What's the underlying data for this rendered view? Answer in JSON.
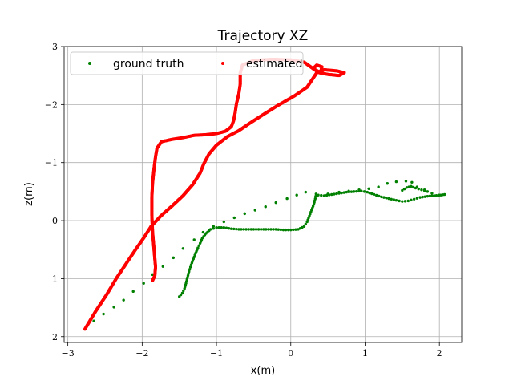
{
  "chart_data": {
    "type": "scatter",
    "title": "Trajectory XZ",
    "xlabel": "x(m)",
    "ylabel": "z(m)",
    "xlim": [
      -3.05,
      2.3
    ],
    "ylim": [
      -3.0,
      2.1
    ],
    "y_inverted": true,
    "grid": true,
    "legend_position": "top",
    "x_ticks": [
      -3,
      -2,
      -1,
      0,
      1,
      2
    ],
    "y_ticks": [
      -3,
      -2,
      -1,
      0,
      1,
      2
    ],
    "x_tick_labels": [
      "−3",
      "−2",
      "−1",
      "0",
      "1",
      "2"
    ],
    "y_tick_labels": [
      "−3",
      "−2",
      "−1",
      "0",
      "1",
      "2"
    ],
    "series": [
      {
        "name": "ground truth",
        "color": "#008000",
        "sparse": true,
        "points": [
          [
            -2.77,
            1.87
          ],
          [
            -2.65,
            1.73
          ],
          [
            -2.52,
            1.61
          ],
          [
            -2.38,
            1.49
          ],
          [
            -2.25,
            1.37
          ],
          [
            -2.12,
            1.22
          ],
          [
            -1.98,
            1.08
          ],
          [
            -1.86,
            0.93
          ],
          [
            -1.72,
            0.79
          ],
          [
            -1.58,
            0.64
          ],
          [
            -1.45,
            0.48
          ],
          [
            -1.3,
            0.33
          ],
          [
            -1.18,
            0.2
          ],
          [
            -1.04,
            0.1
          ],
          [
            -0.9,
            0.02
          ],
          [
            -0.76,
            -0.05
          ],
          [
            -0.62,
            -0.12
          ],
          [
            -0.48,
            -0.18
          ],
          [
            -0.34,
            -0.24
          ],
          [
            -0.2,
            -0.31
          ],
          [
            -0.05,
            -0.38
          ],
          [
            0.08,
            -0.44
          ],
          [
            0.2,
            -0.49
          ],
          [
            0.35,
            -0.42
          ],
          [
            0.5,
            -0.46
          ],
          [
            0.65,
            -0.49
          ],
          [
            0.78,
            -0.51
          ],
          [
            0.92,
            -0.53
          ],
          [
            1.05,
            -0.55
          ],
          [
            1.18,
            -0.58
          ],
          [
            1.3,
            -0.64
          ],
          [
            1.42,
            -0.67
          ],
          [
            1.55,
            -0.68
          ],
          [
            1.63,
            -0.66
          ],
          [
            1.7,
            -0.58
          ],
          [
            1.8,
            -0.53
          ],
          [
            1.9,
            -0.47
          ],
          [
            2.0,
            -0.44
          ]
        ],
        "segments": [
          [
            [
              -1.5,
              1.31
            ],
            [
              -1.46,
              1.25
            ],
            [
              -1.43,
              1.17
            ],
            [
              -1.41,
              1.08
            ],
            [
              -1.39,
              0.98
            ],
            [
              -1.37,
              0.88
            ],
            [
              -1.34,
              0.76
            ],
            [
              -1.31,
              0.66
            ],
            [
              -1.28,
              0.56
            ],
            [
              -1.25,
              0.47
            ],
            [
              -1.22,
              0.39
            ],
            [
              -1.19,
              0.3
            ],
            [
              -1.14,
              0.22
            ],
            [
              -1.08,
              0.15
            ],
            [
              -1.0,
              0.12
            ],
            [
              -0.9,
              0.12
            ],
            [
              -0.8,
              0.14
            ],
            [
              -0.7,
              0.15
            ],
            [
              -0.6,
              0.15
            ],
            [
              -0.5,
              0.15
            ],
            [
              -0.4,
              0.15
            ],
            [
              -0.3,
              0.15
            ],
            [
              -0.2,
              0.15
            ],
            [
              -0.1,
              0.16
            ],
            [
              0.0,
              0.16
            ],
            [
              0.1,
              0.15
            ],
            [
              0.18,
              0.1
            ],
            [
              0.22,
              0.02
            ],
            [
              0.25,
              -0.08
            ],
            [
              0.28,
              -0.18
            ],
            [
              0.31,
              -0.28
            ],
            [
              0.33,
              -0.38
            ],
            [
              0.34,
              -0.46
            ],
            [
              0.37,
              -0.44
            ],
            [
              0.45,
              -0.43
            ],
            [
              0.55,
              -0.45
            ],
            [
              0.65,
              -0.47
            ],
            [
              0.75,
              -0.49
            ],
            [
              0.85,
              -0.5
            ],
            [
              0.95,
              -0.51
            ],
            [
              1.03,
              -0.49
            ],
            [
              1.12,
              -0.45
            ],
            [
              1.22,
              -0.41
            ],
            [
              1.32,
              -0.38
            ],
            [
              1.42,
              -0.35
            ],
            [
              1.5,
              -0.33
            ],
            [
              1.58,
              -0.34
            ],
            [
              1.66,
              -0.37
            ],
            [
              1.74,
              -0.4
            ],
            [
              1.84,
              -0.42
            ],
            [
              1.93,
              -0.43
            ],
            [
              2.02,
              -0.44
            ],
            [
              2.07,
              -0.45
            ]
          ],
          [
            [
              1.5,
              -0.52
            ],
            [
              1.56,
              -0.57
            ],
            [
              1.62,
              -0.59
            ],
            [
              1.68,
              -0.56
            ],
            [
              1.76,
              -0.53
            ],
            [
              1.84,
              -0.5
            ]
          ]
        ]
      },
      {
        "name": "estimated",
        "color": "#ff0000",
        "sparse": false,
        "segments": [
          [
            [
              -2.77,
              1.87
            ],
            [
              -2.62,
              1.55
            ],
            [
              -2.48,
              1.28
            ],
            [
              -2.35,
              1.0
            ],
            [
              -2.22,
              0.75
            ],
            [
              -2.1,
              0.52
            ],
            [
              -1.98,
              0.3
            ],
            [
              -1.88,
              0.1
            ],
            [
              -1.75,
              -0.08
            ],
            [
              -1.6,
              -0.25
            ],
            [
              -1.45,
              -0.43
            ],
            [
              -1.32,
              -0.62
            ],
            [
              -1.22,
              -0.82
            ],
            [
              -1.17,
              -0.98
            ],
            [
              -1.1,
              -1.15
            ],
            [
              -1.0,
              -1.3
            ],
            [
              -0.85,
              -1.45
            ],
            [
              -0.7,
              -1.55
            ],
            [
              -0.55,
              -1.68
            ],
            [
              -0.38,
              -1.82
            ],
            [
              -0.18,
              -1.98
            ],
            [
              0.05,
              -2.15
            ],
            [
              0.22,
              -2.3
            ],
            [
              0.35,
              -2.55
            ],
            [
              0.45,
              -2.6
            ],
            [
              0.62,
              -2.58
            ],
            [
              0.72,
              -2.55
            ],
            [
              0.65,
              -2.5
            ],
            [
              0.5,
              -2.52
            ],
            [
              0.38,
              -2.55
            ],
            [
              0.3,
              -2.62
            ],
            [
              0.35,
              -2.68
            ],
            [
              0.42,
              -2.65
            ],
            [
              0.4,
              -2.55
            ],
            [
              0.3,
              -2.62
            ],
            [
              0.18,
              -2.73
            ],
            [
              0.0,
              -2.77
            ],
            [
              -0.25,
              -2.78
            ],
            [
              -0.5,
              -2.76
            ],
            [
              -0.65,
              -2.68
            ],
            [
              -0.68,
              -2.55
            ],
            [
              -0.68,
              -2.35
            ],
            [
              -0.7,
              -2.18
            ],
            [
              -0.73,
              -2.02
            ],
            [
              -0.75,
              -1.85
            ],
            [
              -0.77,
              -1.72
            ],
            [
              -0.8,
              -1.62
            ],
            [
              -0.88,
              -1.54
            ],
            [
              -1.0,
              -1.5
            ],
            [
              -1.15,
              -1.48
            ],
            [
              -1.3,
              -1.47
            ],
            [
              -1.45,
              -1.43
            ],
            [
              -1.6,
              -1.4
            ],
            [
              -1.74,
              -1.36
            ],
            [
              -1.8,
              -1.25
            ],
            [
              -1.82,
              -1.1
            ],
            [
              -1.84,
              -0.9
            ],
            [
              -1.86,
              -0.65
            ],
            [
              -1.87,
              -0.4
            ],
            [
              -1.87,
              -0.1
            ],
            [
              -1.86,
              0.2
            ],
            [
              -1.84,
              0.5
            ],
            [
              -1.82,
              0.8
            ],
            [
              -1.83,
              0.95
            ],
            [
              -1.86,
              1.03
            ]
          ]
        ]
      }
    ]
  }
}
